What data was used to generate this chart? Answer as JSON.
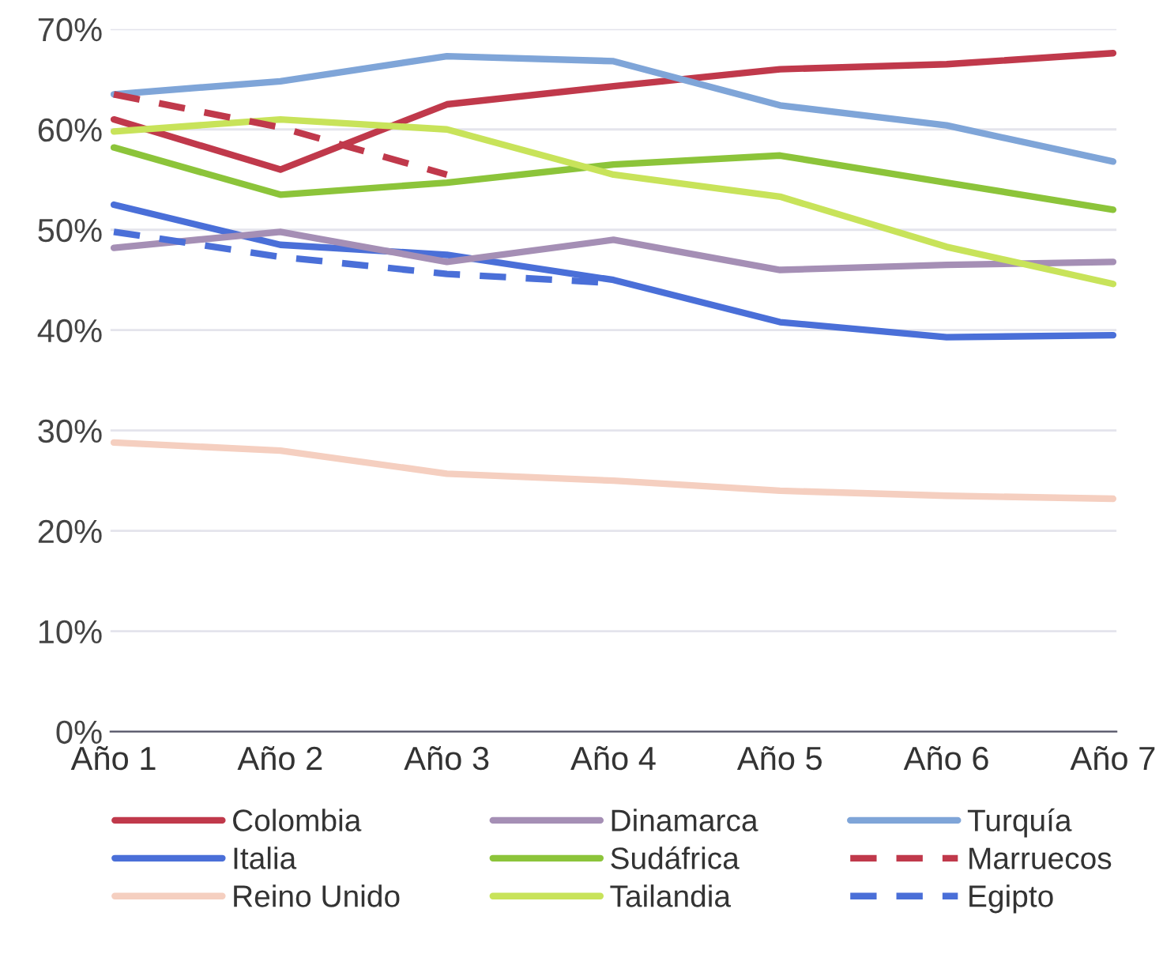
{
  "chart_data": {
    "type": "line",
    "categories": [
      "Año 1",
      "Año 2",
      "Año 3",
      "Año 4",
      "Año 5",
      "Año 6",
      "Año 7"
    ],
    "ylim": [
      0,
      70
    ],
    "yticks": [
      {
        "value": 0,
        "label": "0%"
      },
      {
        "value": 10,
        "label": "10%"
      },
      {
        "value": 20,
        "label": "20%"
      },
      {
        "value": 30,
        "label": "30%"
      },
      {
        "value": 40,
        "label": "40%"
      },
      {
        "value": 50,
        "label": "50%"
      },
      {
        "value": 60,
        "label": "60%"
      },
      {
        "value": 70,
        "label": "70%"
      }
    ],
    "grid": "y",
    "legend": "bottom",
    "marker": "none",
    "series": [
      {
        "name": "Colombia",
        "color": "#c0394b",
        "line_style": "solid",
        "values": [
          61,
          56,
          62.5,
          64.3,
          66,
          66.5,
          67.6
        ]
      },
      {
        "name": "Italia",
        "color": "#4a6fd8",
        "line_style": "solid",
        "values": [
          52.5,
          48.5,
          47.5,
          45,
          40.8,
          39.3,
          39.5
        ]
      },
      {
        "name": "Reino Unido",
        "color": "#f5cfc0",
        "line_style": "solid",
        "values": [
          28.8,
          28,
          25.7,
          25,
          24,
          23.5,
          23.2
        ]
      },
      {
        "name": "Dinamarca",
        "color": "#a58fb5",
        "line_style": "solid",
        "values": [
          48.2,
          49.8,
          46.8,
          49,
          46,
          46.5,
          46.8
        ]
      },
      {
        "name": "Sudáfrica",
        "color": "#8cc43a",
        "line_style": "solid",
        "values": [
          58.2,
          53.5,
          54.7,
          56.5,
          57.4,
          54.7,
          52
        ]
      },
      {
        "name": "Tailandia",
        "color": "#c8e35a",
        "line_style": "solid",
        "values": [
          59.8,
          61,
          60,
          55.5,
          53.3,
          48.3,
          44.6
        ]
      },
      {
        "name": "Turquía",
        "color": "#7fa5d8",
        "line_style": "solid",
        "values": [
          63.5,
          64.8,
          67.3,
          66.8,
          62.4,
          60.4,
          56.8
        ]
      },
      {
        "name": "Marruecos",
        "color": "#c0394b",
        "line_style": "dashed",
        "values": [
          63.5,
          60.2,
          55.5,
          null,
          null,
          null,
          null
        ]
      },
      {
        "name": "Egipto",
        "color": "#4a6fd8",
        "line_style": "dashed",
        "values": [
          49.8,
          47.3,
          45.6,
          44.7,
          null,
          null,
          null
        ]
      }
    ]
  }
}
